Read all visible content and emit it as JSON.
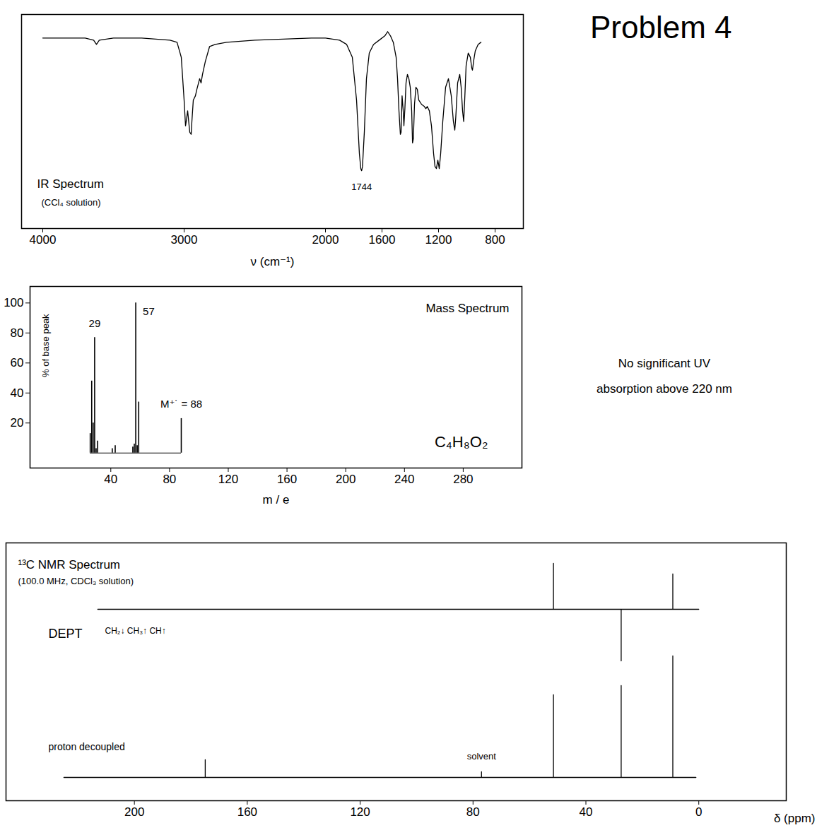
{
  "title": "Problem 4",
  "note": [
    "No significant UV",
    "absorption above 220 nm"
  ],
  "chart_data": [
    {
      "type": "line",
      "title": "IR Spectrum",
      "subtitle": "(CCl₄ solution)",
      "x_label": "ν (cm⁻¹)",
      "x": [
        4000,
        3800,
        3700,
        3640,
        3620,
        3600,
        3500,
        3300,
        3200,
        3100,
        3050,
        3020,
        3000,
        2990,
        2985,
        2975,
        2960,
        2950,
        2945,
        2935,
        2920,
        2910,
        2890,
        2880,
        2870,
        2850,
        2820,
        2780,
        2700,
        2500,
        2300,
        2100,
        2000,
        1900,
        1850,
        1810,
        1780,
        1760,
        1750,
        1744,
        1738,
        1725,
        1710,
        1690,
        1660,
        1620,
        1580,
        1560,
        1540,
        1520,
        1500,
        1490,
        1480,
        1470,
        1465,
        1458,
        1450,
        1445,
        1438,
        1430,
        1420,
        1410,
        1400,
        1390,
        1384,
        1378,
        1370,
        1360,
        1350,
        1340,
        1320,
        1300,
        1290,
        1280,
        1265,
        1250,
        1235,
        1225,
        1215,
        1205,
        1200,
        1195,
        1185,
        1170,
        1150,
        1130,
        1110,
        1095,
        1085,
        1078,
        1065,
        1050,
        1040,
        1030,
        1022,
        1015,
        1005,
        990,
        975,
        965,
        960,
        950,
        940,
        920,
        900
      ],
      "values": [
        89,
        89,
        89,
        88,
        86,
        88,
        89,
        89,
        88.5,
        88,
        87,
        80,
        60,
        48,
        50,
        55,
        45,
        44,
        50,
        60,
        62,
        65,
        70,
        68,
        72,
        78,
        85,
        86,
        87,
        88,
        88.5,
        89,
        89,
        88,
        86,
        80,
        60,
        35,
        28,
        27,
        29,
        45,
        70,
        82,
        86,
        88,
        90,
        92,
        90,
        87,
        80,
        70,
        55,
        44,
        45,
        62,
        55,
        48,
        56,
        68,
        72,
        70,
        66,
        55,
        40,
        42,
        58,
        66,
        65,
        60,
        58,
        57,
        56,
        57,
        55,
        48,
        35,
        29,
        28,
        32,
        30,
        28,
        35,
        50,
        66,
        70,
        62,
        50,
        46,
        52,
        68,
        72,
        66,
        55,
        50,
        60,
        76,
        82,
        80,
        75,
        74,
        79,
        83,
        86,
        87
      ],
      "xlim": [
        4150,
        600
      ],
      "ylim": [
        0,
        100
      ],
      "xticks": [
        4000,
        3000,
        2000,
        1600,
        1200,
        800
      ],
      "tick_labels": "x",
      "color": "#000000",
      "annotations": [
        {
          "x": 1744,
          "text": "1744"
        }
      ]
    },
    {
      "type": "bar",
      "title": "Mass Spectrum",
      "formula": "C₄H₈O₂",
      "x_label": "m / e",
      "y_label": "% of base peak",
      "x": [
        26,
        27,
        28,
        29,
        30,
        31,
        41,
        43,
        55,
        56,
        57,
        58,
        59,
        88
      ],
      "values": [
        13,
        48,
        20,
        77,
        3,
        8,
        3,
        5,
        4,
        6,
        100,
        5,
        34,
        23
      ],
      "xlim": [
        -15,
        320
      ],
      "ylim": [
        -10,
        111
      ],
      "xticks": [
        40,
        80,
        120,
        160,
        200,
        240,
        280
      ],
      "yticks": [
        20,
        40,
        60,
        80,
        100
      ],
      "color": "#000000",
      "annotations": [
        {
          "x": 29,
          "text": "29"
        },
        {
          "x": 57,
          "text": "57"
        },
        {
          "x": 88,
          "text": "M⁺˙ = 88"
        }
      ]
    },
    {
      "type": "line",
      "name": "DEPT",
      "subtitle": "CH₂↓ CH₃↑ CH↑",
      "x": [
        213,
        51.5,
        51.5,
        51.5,
        27.5,
        27.5,
        27.5,
        9.2,
        9.2,
        9.2,
        0
      ],
      "values": [
        0,
        0,
        65,
        0,
        0,
        -73,
        0,
        0,
        50,
        0,
        0
      ],
      "xlim": [
        245.5,
        -31
      ],
      "ylim": [
        -86,
        94
      ],
      "tick_labels": false,
      "color": "#000000"
    },
    {
      "type": "line",
      "title": "¹³C NMR Spectrum",
      "subtitle": "(100.0 MHz, CDCl₃ solution)",
      "name": "proton decoupled",
      "x_label": "δ (ppm)",
      "x": [
        225,
        174.9,
        174.9,
        174.9,
        77.0,
        77.0,
        77.0,
        51.5,
        51.5,
        51.5,
        27.5,
        27.5,
        27.5,
        9.2,
        9.2,
        9.2,
        1
      ],
      "values": [
        0,
        0,
        25,
        0,
        0,
        8,
        0,
        0,
        117,
        0,
        0,
        130,
        0,
        0,
        172,
        0,
        0
      ],
      "xlim": [
        245.5,
        -31
      ],
      "ylim": [
        -33,
        332
      ],
      "xticks": [
        200,
        160,
        120,
        80,
        40,
        0
      ],
      "tick_labels": "x",
      "color": "#000000",
      "annotations": [
        {
          "x": 77.0,
          "text": "solvent"
        }
      ]
    }
  ]
}
